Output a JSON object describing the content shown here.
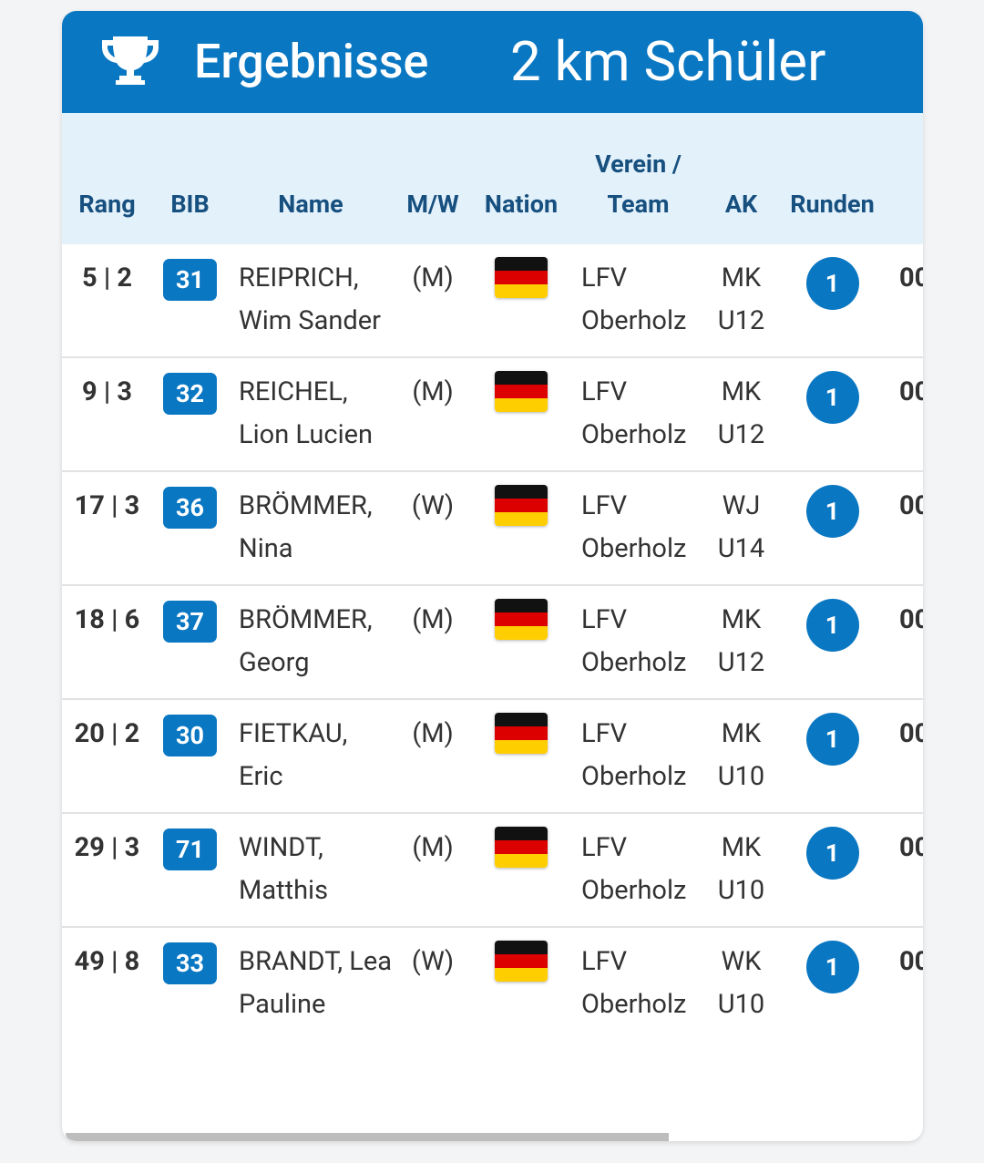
{
  "header": {
    "title": "Ergebnisse",
    "subtitle": "2 km Schüler"
  },
  "table": {
    "columns": [
      "Rang",
      "BIB",
      "Name",
      "M/W",
      "Nation",
      "Verein / Team",
      "AK",
      "Runden"
    ],
    "rows": [
      {
        "rang": "5 | 2",
        "bib": "31",
        "name": "REIPRICH, Wim Sander",
        "mw": "(M)",
        "verein": "LFV Oberholz",
        "ak": "MK U12",
        "runden": "1",
        "time": "00"
      },
      {
        "rang": "9 | 3",
        "bib": "32",
        "name": "REICHEL, Lion Lucien",
        "mw": "(M)",
        "verein": "LFV Oberholz",
        "ak": "MK U12",
        "runden": "1",
        "time": "00"
      },
      {
        "rang": "17 | 3",
        "bib": "36",
        "name": "BRÖMMER, Nina",
        "mw": "(W)",
        "verein": "LFV Oberholz",
        "ak": "WJ U14",
        "runden": "1",
        "time": "00"
      },
      {
        "rang": "18 | 6",
        "bib": "37",
        "name": "BRÖMMER, Georg",
        "mw": "(M)",
        "verein": "LFV Oberholz",
        "ak": "MK U12",
        "runden": "1",
        "time": "00"
      },
      {
        "rang": "20 | 2",
        "bib": "30",
        "name": "FIETKAU, Eric",
        "mw": "(M)",
        "verein": "LFV Oberholz",
        "ak": "MK U10",
        "runden": "1",
        "time": "00"
      },
      {
        "rang": "29 | 3",
        "bib": "71",
        "name": "WINDT, Matthis",
        "mw": "(M)",
        "verein": "LFV Oberholz",
        "ak": "MK U10",
        "runden": "1",
        "time": "00"
      },
      {
        "rang": "49 | 8",
        "bib": "33",
        "name": "BRANDT, Lea Pauline",
        "mw": "(W)",
        "verein": "LFV Oberholz",
        "ak": "WK U10",
        "runden": "1",
        "time": "00"
      }
    ]
  }
}
